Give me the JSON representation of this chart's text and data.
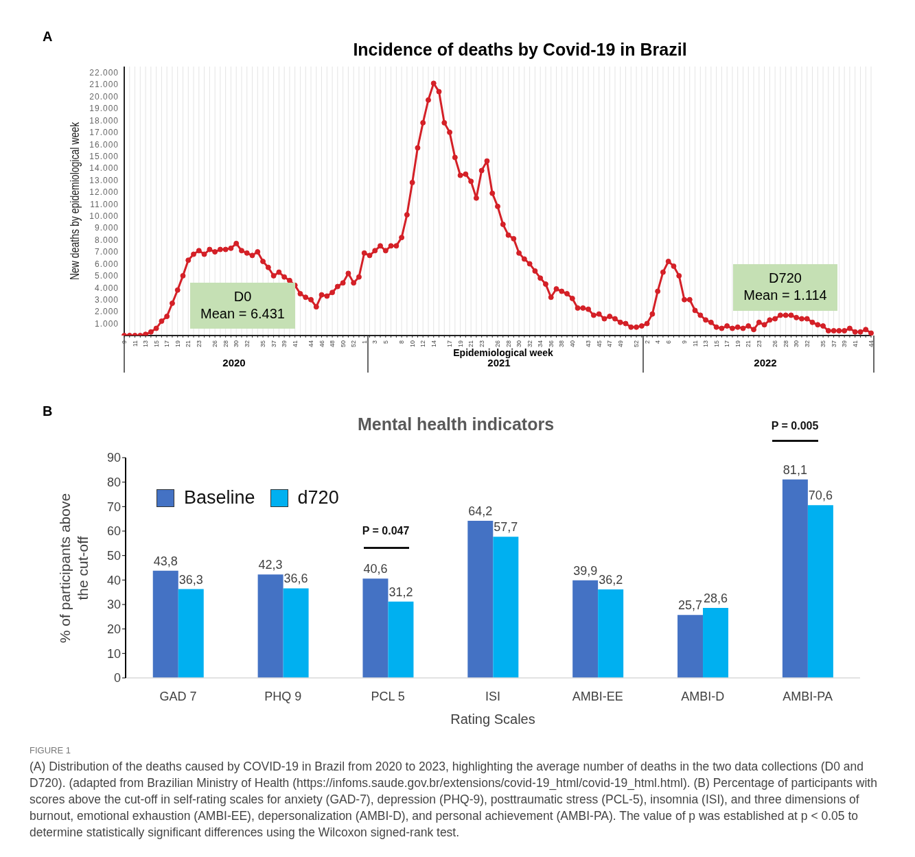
{
  "chart_data": [
    {
      "type": "line",
      "title": "Incidence of deaths by Covid-19 in Brazil",
      "xlabel": "Epidemiological week",
      "ylabel": "New deaths by epidemiological week",
      "categories": [
        "9",
        null,
        "11",
        null,
        "13",
        null,
        "15",
        null,
        "17",
        null,
        "19",
        null,
        "21",
        null,
        "23",
        null,
        null,
        "26",
        null,
        "28",
        null,
        "30",
        null,
        "32",
        null,
        null,
        "35",
        null,
        "37",
        null,
        "39",
        null,
        "41",
        null,
        null,
        "44",
        null,
        "46",
        null,
        "48",
        null,
        "50",
        null,
        "52",
        null,
        "1",
        null,
        "3",
        null,
        "5",
        null,
        null,
        "8",
        null,
        "10",
        null,
        "12",
        null,
        "14",
        null,
        null,
        "17",
        null,
        "19",
        null,
        "21",
        null,
        "23",
        null,
        null,
        "26",
        null,
        "28",
        null,
        "30",
        null,
        "32",
        null,
        "34",
        null,
        "36",
        null,
        "38",
        null,
        "40",
        null,
        null,
        "43",
        null,
        "45",
        null,
        "47",
        null,
        "49",
        null,
        null,
        "52",
        null,
        "2",
        null,
        "4",
        null,
        "6",
        null,
        null,
        "9",
        null,
        "11",
        null,
        "13",
        null,
        "15",
        null,
        "17",
        null,
        "19",
        null,
        "21",
        null,
        "23",
        null,
        null,
        "26",
        null,
        "28",
        null,
        "30",
        null,
        "32",
        null,
        null,
        "35",
        null,
        "37",
        null,
        "39",
        null,
        "41",
        null,
        null,
        "44"
      ],
      "values": [
        0,
        0,
        0,
        0,
        100,
        300,
        600,
        1200,
        1600,
        2700,
        3800,
        5000,
        6300,
        6800,
        7100,
        6800,
        7200,
        7000,
        7200,
        7200,
        7300,
        7700,
        7100,
        6900,
        6700,
        7000,
        6200,
        5700,
        5000,
        5300,
        4900,
        4600,
        4200,
        3500,
        3200,
        3000,
        2400,
        3400,
        3300,
        3600,
        4100,
        4400,
        5200,
        4400,
        4900,
        6900,
        6700,
        7100,
        7500,
        7100,
        7500,
        7500,
        8200,
        10100,
        12800,
        15700,
        17800,
        19700,
        21100,
        20400,
        17800,
        17000,
        14900,
        13400,
        13500,
        12900,
        11500,
        13800,
        14600,
        11900,
        10800,
        9300,
        8400,
        8100,
        6900,
        6400,
        6000,
        5400,
        4800,
        4300,
        3200,
        3900,
        3700,
        3500,
        3100,
        2300,
        2300,
        2200,
        1700,
        1800,
        1400,
        1600,
        1400,
        1100,
        1000,
        700,
        700,
        800,
        1000,
        1800,
        3700,
        5300,
        6200,
        5800,
        5000,
        3000,
        3000,
        2100,
        1700,
        1300,
        1100,
        700,
        600,
        800,
        600,
        700,
        600,
        800,
        500,
        1100,
        900,
        1300,
        1400,
        1700,
        1700,
        1700,
        1500,
        1400,
        1400,
        1100,
        900,
        800,
        400,
        400,
        400,
        400,
        600,
        300,
        300,
        500,
        200
      ],
      "color": "#d42027",
      "marker": "circle",
      "grid": "x",
      "ylim": [
        0,
        22500
      ],
      "yticks": [
        {
          "value": 1000,
          "label": "1.000"
        },
        {
          "value": 2000,
          "label": "2.000"
        },
        {
          "value": 3000,
          "label": "3.000"
        },
        {
          "value": 4000,
          "label": "4.000"
        },
        {
          "value": 5000,
          "label": "5.000"
        },
        {
          "value": 6000,
          "label": "6.000"
        },
        {
          "value": 7000,
          "label": "7.000"
        },
        {
          "value": 8000,
          "label": "8.000"
        },
        {
          "value": 9000,
          "label": "9.000"
        },
        {
          "value": 10000,
          "label": "10.000"
        },
        {
          "value": 11000,
          "label": "11.000"
        },
        {
          "value": 12000,
          "label": "12.000"
        },
        {
          "value": 13000,
          "label": "13.000"
        },
        {
          "value": 14000,
          "label": "14.000"
        },
        {
          "value": 15000,
          "label": "15.000"
        },
        {
          "value": 16000,
          "label": "16.000"
        },
        {
          "value": 17000,
          "label": "17.000"
        },
        {
          "value": 18000,
          "label": "18.000"
        },
        {
          "value": 19000,
          "label": "19.000"
        },
        {
          "value": 20000,
          "label": "20.000"
        },
        {
          "value": 21000,
          "label": "21.000"
        },
        {
          "value": 22000,
          "label": "22.000"
        }
      ],
      "annotations": [
        "A",
        "D0\nMean = 6.431",
        "D720\nMean = 1.114",
        "2020",
        "2021",
        "2022"
      ]
    },
    {
      "type": "bar",
      "title": "Mental health indicators",
      "xlabel": "Rating Scales",
      "ylabel": "% of participants above\nthe cut-off",
      "categories": [
        "GAD 7",
        "PHQ 9",
        "PCL 5",
        "ISI",
        "AMBI-EE",
        "AMBI-D",
        "AMBI-PA"
      ],
      "series": [
        {
          "name": "Baseline",
          "color": "#4472c4",
          "values": [
            43.8,
            42.3,
            40.6,
            64.2,
            39.9,
            25.7,
            81.1
          ],
          "value_labels": [
            "43,8",
            "42,3",
            "40,6",
            "64,2",
            "39,9",
            "25,7",
            "81,1"
          ]
        },
        {
          "name": "d720",
          "color": "#00b0f0",
          "values": [
            36.3,
            36.6,
            31.2,
            57.7,
            36.2,
            28.6,
            70.6
          ],
          "value_labels": [
            "36,3",
            "36,6",
            "31,2",
            "57,7",
            "36,2",
            "28,6",
            "70,6"
          ]
        }
      ],
      "ylim": [
        0,
        90
      ],
      "yticks": [
        0,
        10,
        20,
        30,
        40,
        50,
        60,
        70,
        80,
        90
      ],
      "legend": "top left",
      "annotations": [
        "B",
        "P = 0.047",
        "P = 0.005",
        "FIGURE 1",
        "(A) Distribution of the deaths caused by COVID-19 in Brazil from 2020 to 2023, highlighting the average number of deaths in the two data collections (D0 and D720). (adapted from Brazilian Ministry of Health (https://infoms.saude.gov.br/extensions/covid-19_html/covid-19_html.html). (B) Percentage of participants with scores above the cut-off in self-rating scales for anxiety (GAD-7), depression (PHQ-9), posttraumatic stress (PCL-5), insomnia (ISI), and three dimensions of burnout, emotional exhaustion (AMBI-EE), depersonalization (AMBI-D), and personal achievement (AMBI-PA). The value of p was established at p < 0.05 to determine statistically significant differences using the Wilcoxon signed-rank test."
      ]
    }
  ]
}
